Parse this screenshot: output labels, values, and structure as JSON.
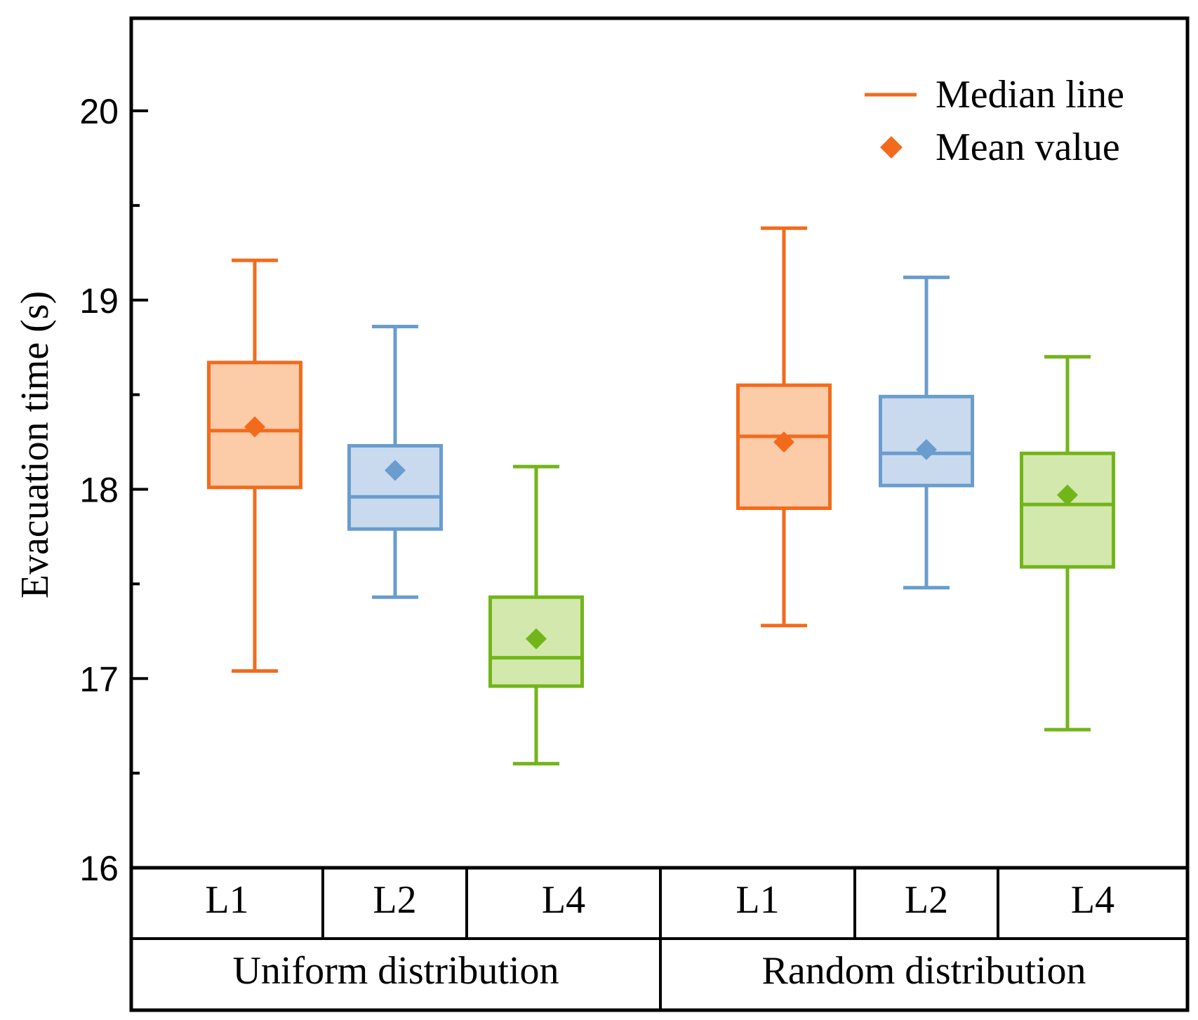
{
  "chart_data": {
    "type": "box",
    "ylabel": "Evacuation time (s)",
    "ylim": [
      16,
      20.5
    ],
    "yticks": [
      16,
      17,
      18,
      19,
      20
    ],
    "ytick_labels": [
      "16",
      "17",
      "18",
      "19",
      "20"
    ],
    "groups": [
      {
        "label": "Uniform distribution",
        "boxes": [
          {
            "label": "L1",
            "color_key": "orange",
            "whisker_low": 17.04,
            "q1": 18.01,
            "median": 18.31,
            "q3": 18.67,
            "whisker_high": 19.21,
            "mean": 18.33
          },
          {
            "label": "L2",
            "color_key": "blue",
            "whisker_low": 17.43,
            "q1": 17.79,
            "median": 17.96,
            "q3": 18.23,
            "whisker_high": 18.86,
            "mean": 18.1
          },
          {
            "label": "L4",
            "color_key": "green",
            "whisker_low": 16.55,
            "q1": 16.96,
            "median": 17.11,
            "q3": 17.43,
            "whisker_high": 18.12,
            "mean": 17.21
          }
        ]
      },
      {
        "label": "Random distribution",
        "boxes": [
          {
            "label": "L1",
            "color_key": "orange",
            "whisker_low": 17.28,
            "q1": 17.9,
            "median": 18.28,
            "q3": 18.55,
            "whisker_high": 19.38,
            "mean": 18.25
          },
          {
            "label": "L2",
            "color_key": "blue",
            "whisker_low": 17.48,
            "q1": 18.02,
            "median": 18.19,
            "q3": 18.49,
            "whisker_high": 19.12,
            "mean": 18.21
          },
          {
            "label": "L4",
            "color_key": "green",
            "whisker_low": 16.73,
            "q1": 17.59,
            "median": 17.92,
            "q3": 18.19,
            "whisker_high": 18.7,
            "mean": 17.97
          }
        ]
      }
    ],
    "legend": {
      "position": "top-right",
      "items": [
        {
          "label": "Median line",
          "symbol": "line",
          "color": "#F26B1D"
        },
        {
          "label": "Mean value",
          "symbol": "diamond",
          "color": "#F26B1D"
        }
      ]
    },
    "grid": false
  },
  "colors": {
    "orange": {
      "stroke": "#F26B1D",
      "fill": "#FCCBA8"
    },
    "blue": {
      "stroke": "#6A9CCE",
      "fill": "#C9DAEE"
    },
    "green": {
      "stroke": "#72B51A",
      "fill": "#D2E8AC"
    }
  }
}
